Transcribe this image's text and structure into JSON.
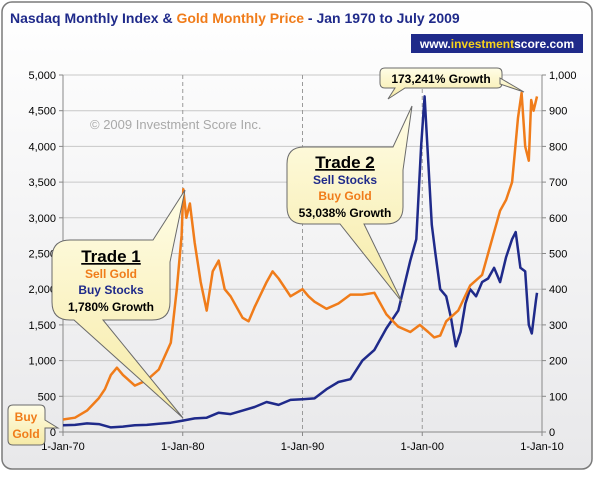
{
  "chart_data": {
    "type": "line",
    "title_parts": [
      {
        "text": "Nasdaq Monthly Index",
        "color": "#1f2a8a"
      },
      {
        "text": " & ",
        "color": "#1f2a8a"
      },
      {
        "text": "Gold Monthly Price",
        "color": "#f07c1a"
      },
      {
        "text": " - Jan 1970 to July 2009",
        "color": "#1f2a8a"
      }
    ],
    "watermark": "© 2009 Investment Score Inc.",
    "badge": {
      "parts": [
        {
          "text": "www.",
          "color": "#ffffff"
        },
        {
          "text": "investment",
          "color": "#f6d21d"
        },
        {
          "text": "score.com",
          "color": "#ffffff"
        }
      ],
      "bg_color": "#1f2a8a"
    },
    "x_ticks": [
      "1-Jan-70",
      "1-Jan-80",
      "1-Jan-90",
      "1-Jan-00",
      "1-Jan-10"
    ],
    "x_tick_years": [
      1970,
      1980,
      1990,
      2000,
      2010
    ],
    "x_range": [
      1970,
      2010
    ],
    "y_left": {
      "min": 0,
      "max": 5000,
      "ticks": [
        "0",
        "500",
        "1,000",
        "1,500",
        "2,000",
        "2,500",
        "3,000",
        "3,500",
        "4,000",
        "4,500",
        "5,000"
      ]
    },
    "y_right": {
      "min": 0,
      "max": 1000,
      "ticks": [
        "0",
        "100",
        "200",
        "300",
        "400",
        "500",
        "600",
        "700",
        "800",
        "900",
        "1,000"
      ]
    },
    "grid": "horizontal",
    "series": [
      {
        "axis": "left",
        "color": "#1f2a8a",
        "points": [
          [
            1970,
            95
          ],
          [
            1971,
            100
          ],
          [
            1972,
            120
          ],
          [
            1973,
            110
          ],
          [
            1974,
            65
          ],
          [
            1975,
            75
          ],
          [
            1976,
            95
          ],
          [
            1977,
            100
          ],
          [
            1978,
            115
          ],
          [
            1979,
            130
          ],
          [
            1980,
            160
          ],
          [
            1981,
            190
          ],
          [
            1982,
            200
          ],
          [
            1983,
            270
          ],
          [
            1984,
            250
          ],
          [
            1985,
            300
          ],
          [
            1986,
            350
          ],
          [
            1987,
            420
          ],
          [
            1988,
            380
          ],
          [
            1989,
            450
          ],
          [
            1990,
            460
          ],
          [
            1991,
            470
          ],
          [
            1992,
            600
          ],
          [
            1993,
            700
          ],
          [
            1994,
            740
          ],
          [
            1995,
            1000
          ],
          [
            1996,
            1150
          ],
          [
            1997,
            1450
          ],
          [
            1998,
            1700
          ],
          [
            1999,
            2400
          ],
          [
            1999.5,
            2700
          ],
          [
            1999.9,
            4000
          ],
          [
            2000.2,
            4700
          ],
          [
            2000.5,
            3800
          ],
          [
            2000.8,
            2900
          ],
          [
            2001.1,
            2500
          ],
          [
            2001.5,
            2000
          ],
          [
            2002.0,
            1900
          ],
          [
            2002.4,
            1600
          ],
          [
            2002.8,
            1200
          ],
          [
            2003.2,
            1400
          ],
          [
            2003.6,
            1800
          ],
          [
            2004.0,
            2000
          ],
          [
            2004.5,
            1900
          ],
          [
            2005.0,
            2100
          ],
          [
            2005.5,
            2150
          ],
          [
            2006.0,
            2300
          ],
          [
            2006.5,
            2100
          ],
          [
            2007.0,
            2450
          ],
          [
            2007.5,
            2700
          ],
          [
            2007.8,
            2800
          ],
          [
            2008.2,
            2300
          ],
          [
            2008.6,
            2250
          ],
          [
            2008.9,
            1500
          ],
          [
            2009.15,
            1380
          ],
          [
            2009.5,
            1850
          ],
          [
            2009.58,
            1950
          ]
        ]
      },
      {
        "axis": "right",
        "color": "#f07c1a",
        "points": [
          [
            1970,
            35
          ],
          [
            1971,
            40
          ],
          [
            1972,
            60
          ],
          [
            1973,
            95
          ],
          [
            1973.5,
            120
          ],
          [
            1974,
            160
          ],
          [
            1974.5,
            180
          ],
          [
            1975,
            160
          ],
          [
            1976,
            130
          ],
          [
            1977,
            145
          ],
          [
            1978,
            175
          ],
          [
            1979,
            250
          ],
          [
            1979.5,
            400
          ],
          [
            1979.9,
            550
          ],
          [
            1980.05,
            680
          ],
          [
            1980.3,
            600
          ],
          [
            1980.6,
            640
          ],
          [
            1981,
            530
          ],
          [
            1981.5,
            420
          ],
          [
            1982,
            340
          ],
          [
            1982.5,
            450
          ],
          [
            1983,
            480
          ],
          [
            1983.5,
            400
          ],
          [
            1984,
            380
          ],
          [
            1985,
            320
          ],
          [
            1985.5,
            310
          ],
          [
            1986,
            350
          ],
          [
            1987,
            420
          ],
          [
            1987.5,
            450
          ],
          [
            1988,
            430
          ],
          [
            1989,
            380
          ],
          [
            1990,
            400
          ],
          [
            1990.5,
            380
          ],
          [
            1991,
            365
          ],
          [
            1992,
            345
          ],
          [
            1993,
            360
          ],
          [
            1994,
            385
          ],
          [
            1995,
            385
          ],
          [
            1996,
            390
          ],
          [
            1997,
            330
          ],
          [
            1998,
            295
          ],
          [
            1999,
            280
          ],
          [
            1999.8,
            300
          ],
          [
            2000.5,
            280
          ],
          [
            2001,
            265
          ],
          [
            2001.5,
            270
          ],
          [
            2002,
            310
          ],
          [
            2003,
            340
          ],
          [
            2004,
            410
          ],
          [
            2005,
            440
          ],
          [
            2006,
            560
          ],
          [
            2006.5,
            620
          ],
          [
            2007,
            650
          ],
          [
            2007.5,
            700
          ],
          [
            2008,
            880
          ],
          [
            2008.3,
            950
          ],
          [
            2008.6,
            800
          ],
          [
            2008.9,
            760
          ],
          [
            2009.1,
            930
          ],
          [
            2009.3,
            900
          ],
          [
            2009.58,
            940
          ]
        ]
      }
    ],
    "annotations": {
      "buy_gold": [
        "Buy",
        "Gold"
      ],
      "trade1": {
        "title": "Trade 1",
        "line1": "Sell Gold",
        "line2": "Buy Stocks",
        "line3": "1,780% Growth"
      },
      "trade2": {
        "title": "Trade 2",
        "line1": "Sell Stocks",
        "line2": "Buy Gold",
        "line3": "53,038% Growth"
      },
      "growth": "173,241% Growth"
    }
  }
}
